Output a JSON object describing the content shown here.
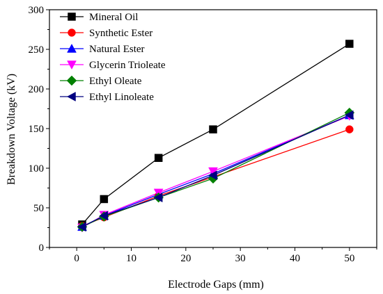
{
  "chart_data": {
    "type": "line",
    "title": "",
    "xlabel": "Electrode Gaps (mm)",
    "ylabel": "Breakdown Voltage (kV)",
    "xlim": [
      -5,
      55
    ],
    "ylim": [
      0,
      300
    ],
    "xticks": [
      0,
      10,
      20,
      30,
      40,
      50
    ],
    "yticks": [
      0,
      50,
      100,
      150,
      200,
      250,
      300
    ],
    "x": [
      1,
      5,
      15,
      25,
      50
    ],
    "grid": false,
    "legend_position": "top-left",
    "series": [
      {
        "name": "Mineral Oil",
        "color": "#000000",
        "marker": "square",
        "values": [
          29,
          61,
          113,
          149,
          257
        ]
      },
      {
        "name": "Synthetic Ester",
        "color": "#ff0000",
        "marker": "circle",
        "values": [
          27,
          38,
          65,
          89,
          149
        ]
      },
      {
        "name": "Natural Ester",
        "color": "#0000ff",
        "marker": "triangle-up",
        "values": [
          26,
          40,
          67,
          93,
          167
        ]
      },
      {
        "name": "Glycerin Trioleate",
        "color": "#ff00ff",
        "marker": "triangle-down",
        "values": [
          25,
          41,
          69,
          96,
          166
        ]
      },
      {
        "name": "Ethyl Oleate",
        "color": "#008000",
        "marker": "diamond",
        "values": [
          26,
          39,
          63,
          87,
          170
        ]
      },
      {
        "name": "Ethyl Linoleate",
        "color": "#000080",
        "marker": "triangle-left",
        "values": [
          26,
          40,
          63,
          91,
          167
        ]
      }
    ]
  }
}
